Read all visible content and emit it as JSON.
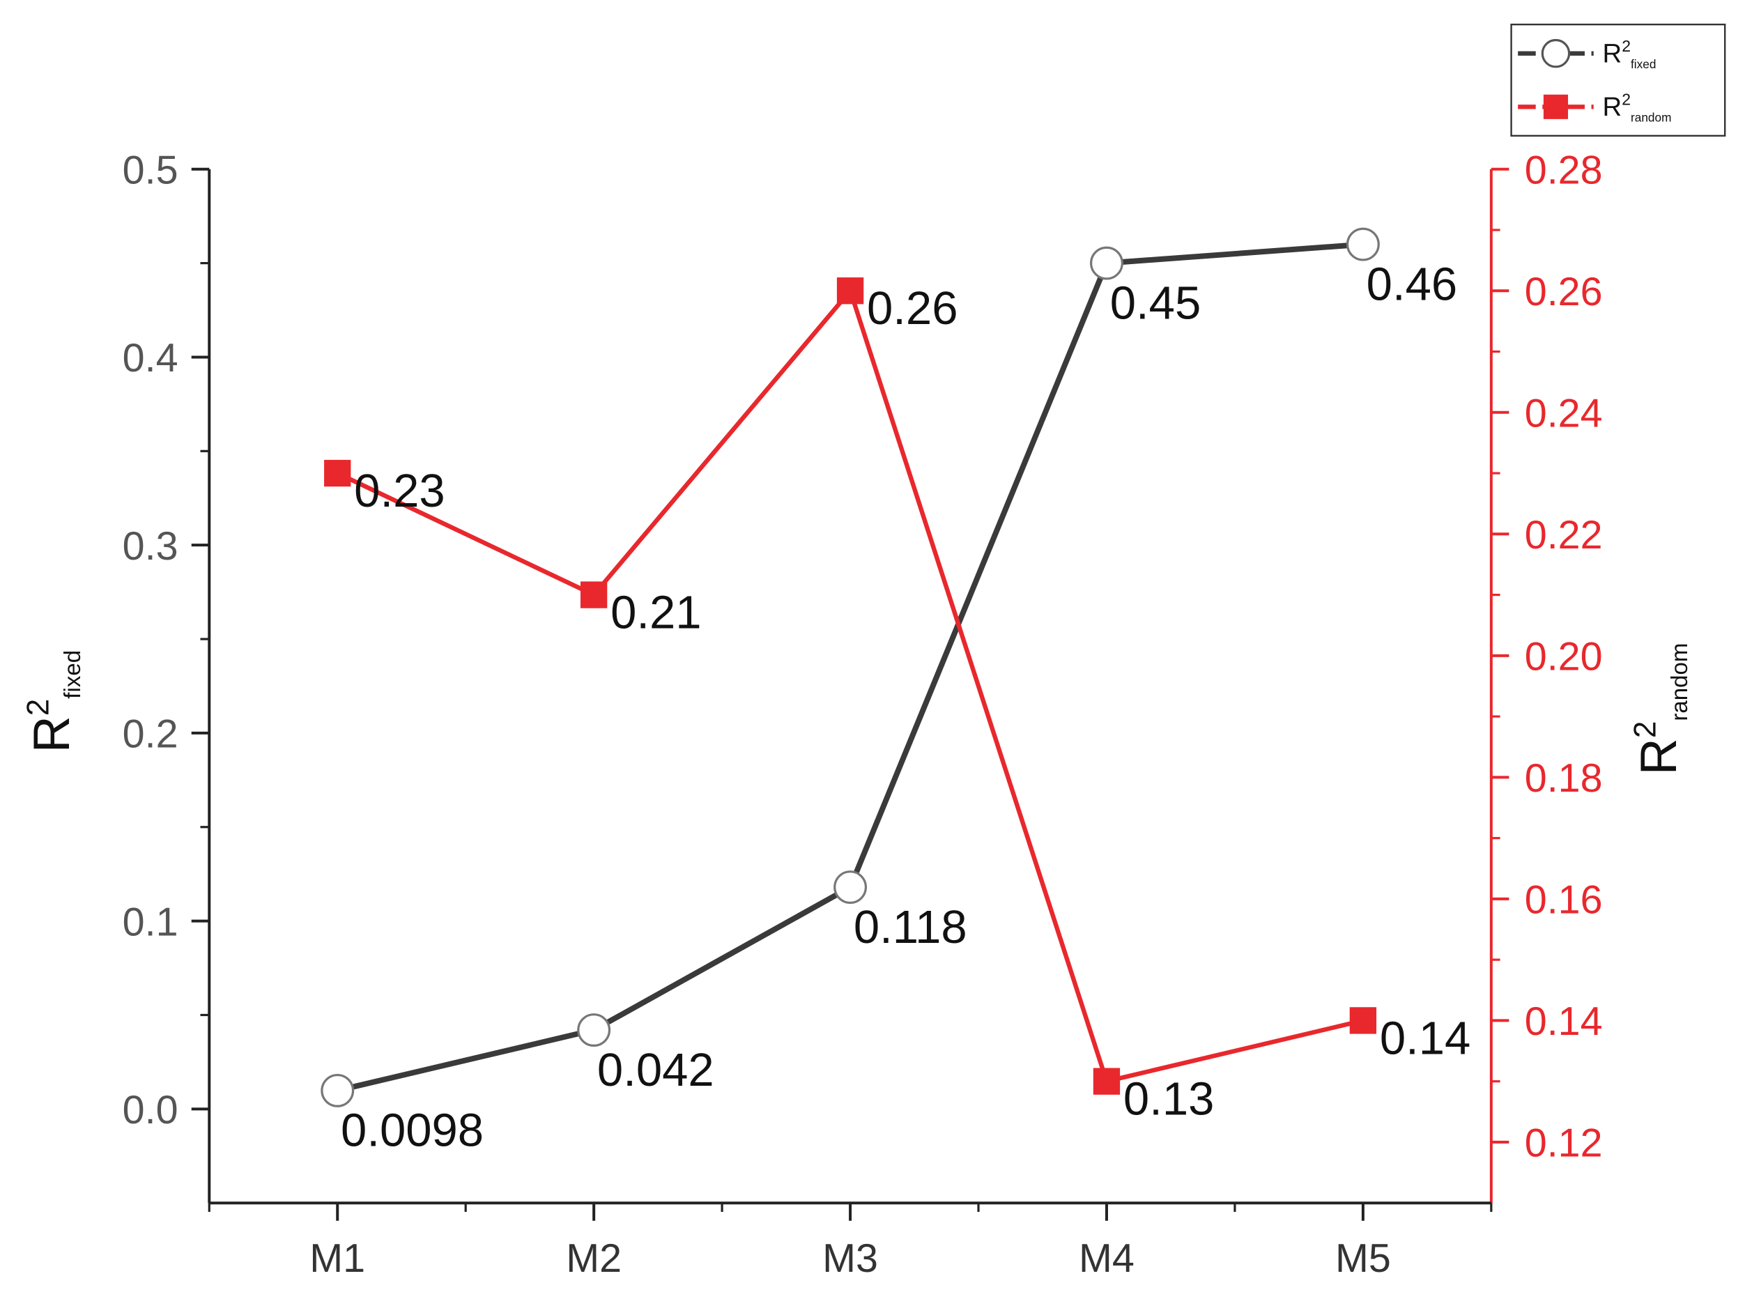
{
  "chart_data": {
    "type": "line",
    "categories": [
      "M1",
      "M2",
      "M3",
      "M4",
      "M5"
    ],
    "y_label": {
      "text": "R",
      "sup": "2",
      "sub": "fixed"
    },
    "y2_label": {
      "text": "R",
      "sup": "2",
      "sub": "random"
    },
    "ylim": [
      -0.05,
      0.5
    ],
    "yticks": [
      {
        "value": 0,
        "label": "0.0"
      },
      0.1,
      0.2,
      0.3,
      0.4,
      0.5
    ],
    "y2lim": [
      0.11,
      0.28
    ],
    "y2ticks": [
      0.12,
      0.14,
      0.16,
      0.18,
      {
        "value": 0.2,
        "label": "0.20"
      },
      0.22,
      0.24,
      0.26,
      0.28
    ],
    "legend": "top-right",
    "series": [
      {
        "name": {
          "text": "R",
          "sup": "2",
          "sub": "fixed"
        },
        "color": "#3a3a3a",
        "marker": "circle",
        "axis": "y",
        "values": [
          0.0098,
          0.042,
          0.118,
          0.45,
          0.46
        ]
      },
      {
        "name": {
          "text": "R",
          "sup": "2",
          "sub": "random"
        },
        "color": "#e8282d",
        "marker": "square",
        "axis": "y2",
        "values": [
          0.23,
          0.21,
          0.26,
          0.13,
          0.14
        ]
      }
    ]
  }
}
